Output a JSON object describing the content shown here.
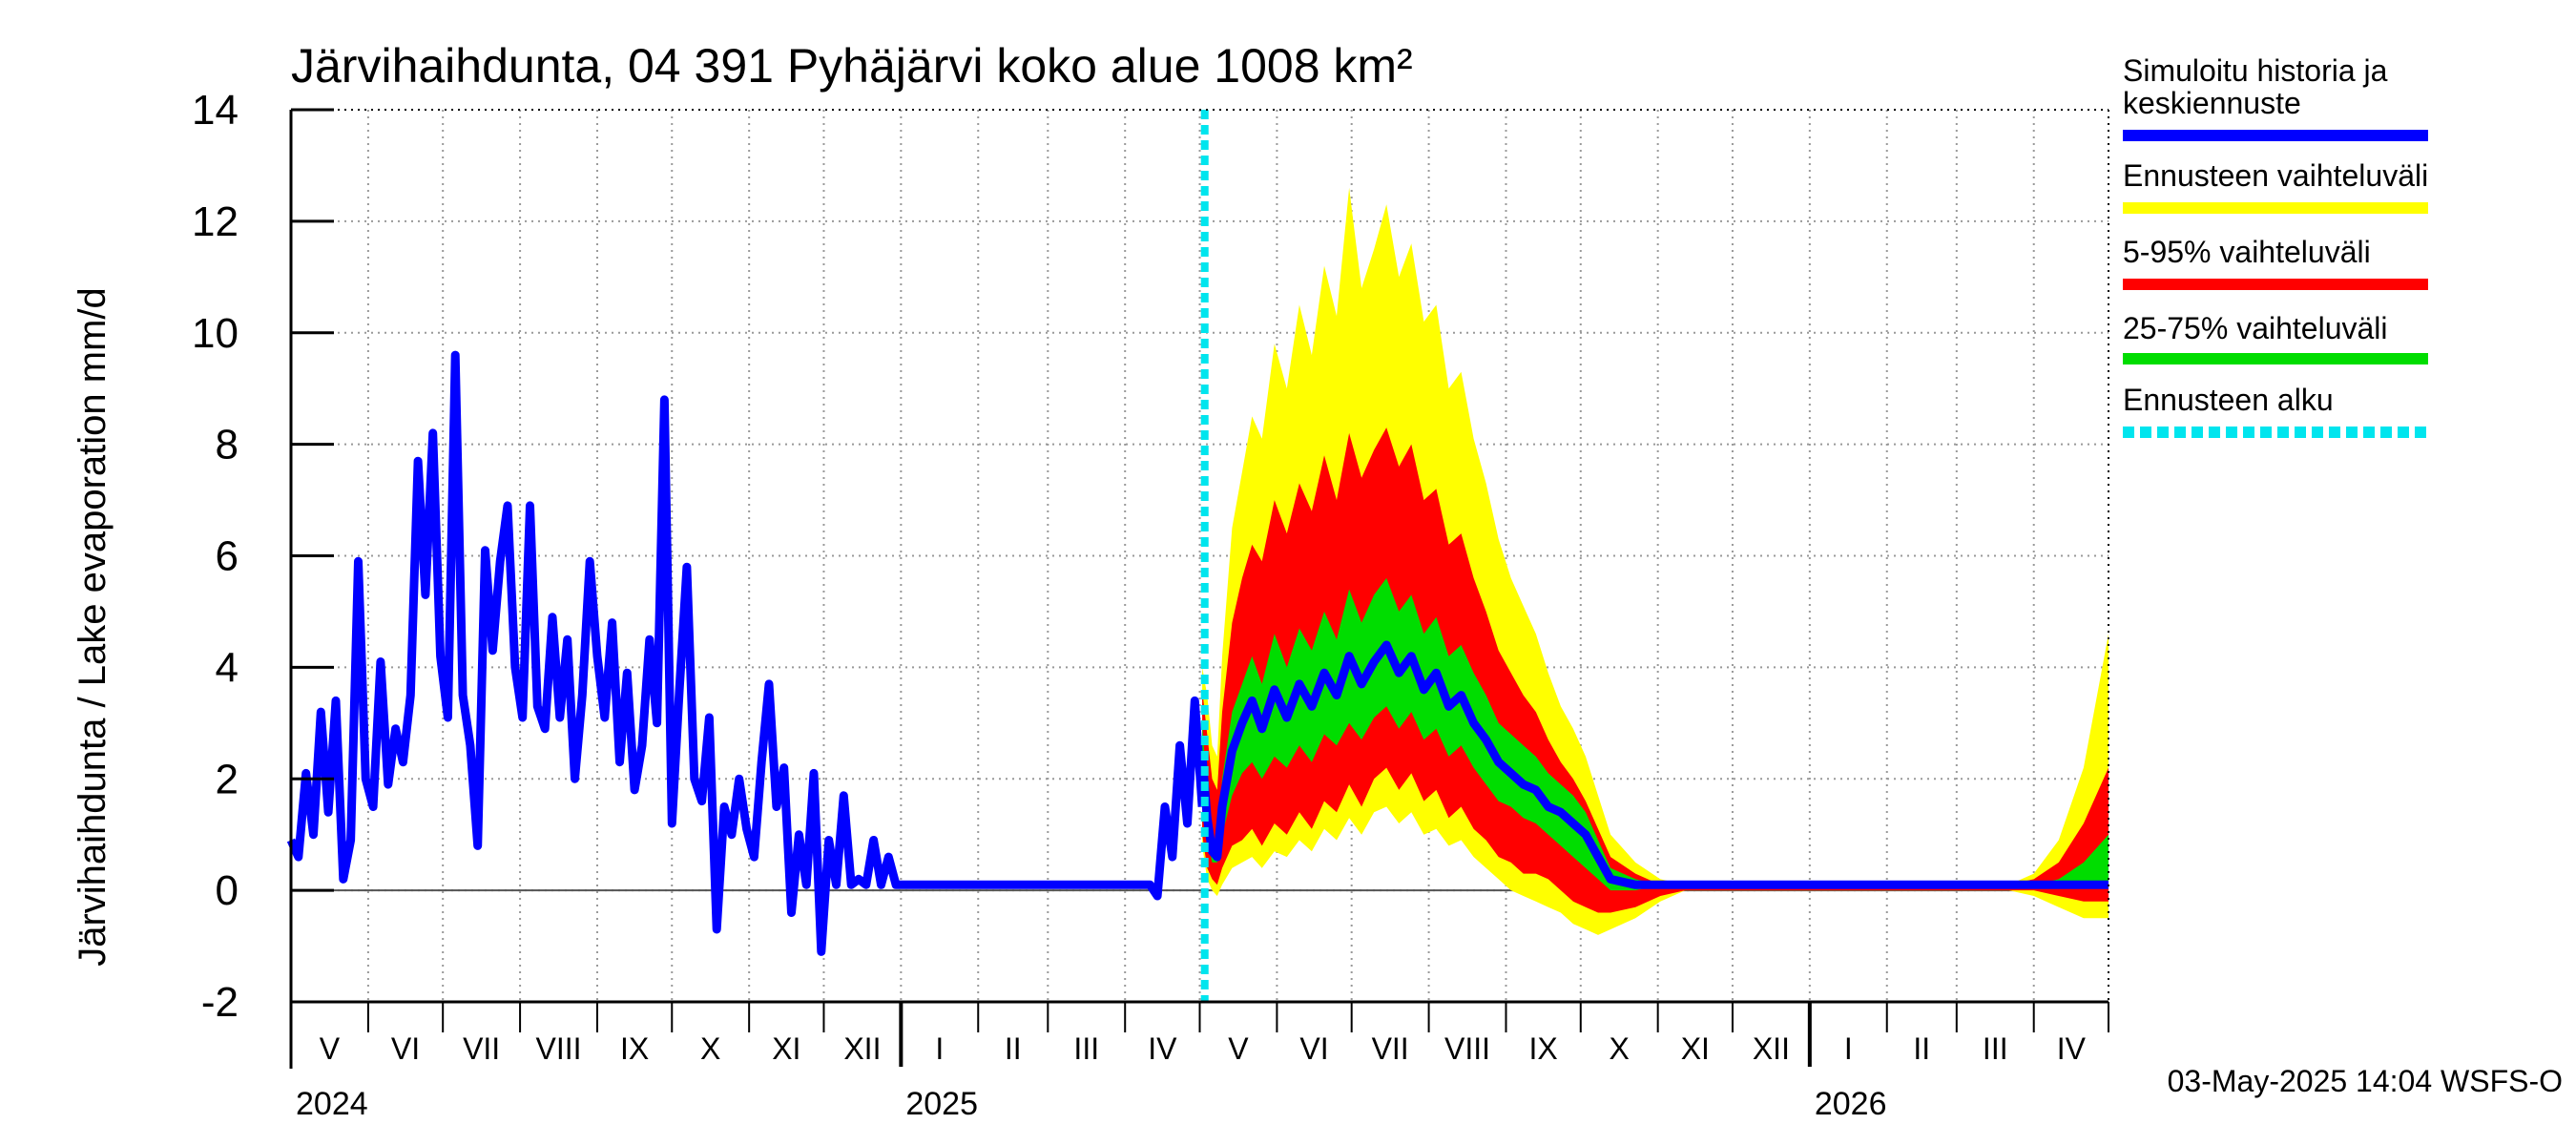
{
  "chart_data": {
    "type": "area",
    "title": "Järvihaihdunta, 04 391 Pyhäjärvi koko alue 1008 km²",
    "ylabel": "Järvihaihdunta / Lake evaporation   mm/d",
    "ylim": [
      -2,
      14
    ],
    "yticks": [
      "-2",
      "0",
      "2",
      "4",
      "6",
      "8",
      "10",
      "12",
      "14"
    ],
    "months": [
      "V",
      "VI",
      "VII",
      "VIII",
      "IX",
      "X",
      "XI",
      "XII",
      "I",
      "II",
      "III",
      "IV",
      "V",
      "VI",
      "VII",
      "VIII",
      "IX",
      "X",
      "XI",
      "XII",
      "I",
      "II",
      "III",
      "IV"
    ],
    "years": [
      "2024",
      "2025",
      "2026"
    ],
    "forecast_start": "2025-05-03",
    "x_start": "2024-05-01",
    "x_end": "2026-05-01",
    "history": {
      "name": "Simuloitu historia ja keskiennuste",
      "color": "#0000ff",
      "days": [
        0,
        3,
        6,
        9,
        12,
        15,
        18,
        21,
        24,
        27,
        30,
        33,
        36,
        39,
        42,
        45,
        48,
        51,
        54,
        57,
        60,
        63,
        66,
        69,
        72,
        75,
        78,
        81,
        84,
        87,
        90,
        93,
        96,
        99,
        102,
        105,
        108,
        111,
        114,
        117,
        120,
        123,
        126,
        129,
        132,
        135,
        138,
        141,
        144,
        147,
        150,
        153,
        156,
        159,
        162,
        165,
        168,
        171,
        174,
        177,
        180,
        183,
        186,
        189,
        192,
        195,
        198,
        201,
        204,
        207,
        210,
        213,
        216,
        219,
        222,
        225,
        228,
        231,
        234,
        237,
        240,
        243,
        246,
        250,
        280,
        310,
        340,
        345,
        348,
        351,
        354,
        357,
        360,
        363,
        366
      ],
      "values": [
        0.9,
        0.6,
        2.1,
        1.0,
        3.2,
        1.4,
        3.4,
        0.2,
        0.9,
        5.9,
        2.0,
        1.5,
        4.1,
        1.9,
        2.9,
        2.3,
        3.5,
        7.7,
        5.3,
        8.2,
        4.2,
        3.1,
        9.6,
        3.5,
        2.6,
        0.8,
        6.1,
        4.3,
        5.9,
        6.9,
        4.0,
        3.1,
        6.9,
        3.3,
        2.9,
        4.9,
        3.1,
        4.5,
        2.0,
        3.5,
        5.9,
        4.2,
        3.1,
        4.8,
        2.3,
        3.9,
        1.8,
        2.6,
        4.5,
        3.0,
        8.8,
        1.2,
        3.6,
        5.8,
        2.0,
        1.6,
        3.1,
        -0.7,
        1.5,
        1.0,
        2.0,
        1.1,
        0.6,
        2.3,
        3.7,
        1.5,
        2.2,
        -0.4,
        1.0,
        0.1,
        2.1,
        -1.1,
        0.9,
        0.1,
        1.7,
        0.1,
        0.2,
        0.1,
        0.9,
        0.1,
        0.6,
        0.1,
        0.1,
        0.1,
        0.1,
        0.1,
        0.1,
        0.1,
        -0.1,
        1.5,
        0.6,
        2.6,
        1.2,
        3.4,
        1.5
      ]
    },
    "forecast": {
      "days": [
        366,
        368,
        370,
        372,
        374,
        378,
        382,
        386,
        390,
        395,
        400,
        405,
        410,
        415,
        420,
        425,
        430,
        435,
        440,
        445,
        450,
        455,
        460,
        465,
        470,
        475,
        480,
        485,
        490,
        495,
        500,
        505,
        510,
        515,
        520,
        525,
        530,
        540,
        550,
        560,
        570,
        580,
        590,
        600,
        610,
        620,
        630,
        640,
        650,
        660,
        670,
        680,
        690,
        700,
        710,
        720,
        730
      ],
      "median": [
        2.4,
        1.3,
        0.7,
        0.6,
        1.5,
        2.5,
        3.0,
        3.4,
        2.9,
        3.6,
        3.1,
        3.7,
        3.3,
        3.9,
        3.5,
        4.2,
        3.7,
        4.1,
        4.4,
        3.9,
        4.2,
        3.6,
        3.9,
        3.3,
        3.5,
        3.0,
        2.7,
        2.3,
        2.1,
        1.9,
        1.8,
        1.5,
        1.4,
        1.2,
        1.0,
        0.6,
        0.2,
        0.1,
        0.1,
        0.1,
        0.1,
        0.1,
        0.1,
        0.1,
        0.1,
        0.1,
        0.1,
        0.1,
        0.1,
        0.1,
        0.1,
        0.1,
        0.1,
        0.1,
        0.1,
        0.1,
        0.1
      ],
      "p25": [
        1.8,
        0.9,
        0.5,
        0.5,
        1.0,
        1.7,
        2.1,
        2.3,
        2.0,
        2.4,
        2.2,
        2.6,
        2.3,
        2.8,
        2.6,
        3.0,
        2.7,
        3.1,
        3.3,
        2.9,
        3.2,
        2.7,
        2.9,
        2.4,
        2.6,
        2.2,
        1.9,
        1.6,
        1.5,
        1.3,
        1.2,
        1.0,
        0.8,
        0.6,
        0.4,
        0.2,
        0.0,
        0.0,
        0.1,
        0.1,
        0.1,
        0.1,
        0.1,
        0.1,
        0.1,
        0.1,
        0.1,
        0.1,
        0.1,
        0.1,
        0.1,
        0.1,
        0.1,
        0.1,
        0.1,
        0.1,
        0.1
      ],
      "p75": [
        3.0,
        1.7,
        1.0,
        0.8,
        2.0,
        3.2,
        3.7,
        4.2,
        3.7,
        4.6,
        4.0,
        4.7,
        4.3,
        5.0,
        4.5,
        5.4,
        4.8,
        5.3,
        5.6,
        5.0,
        5.3,
        4.6,
        4.9,
        4.2,
        4.4,
        3.9,
        3.5,
        3.0,
        2.8,
        2.6,
        2.4,
        2.1,
        1.9,
        1.7,
        1.4,
        0.9,
        0.4,
        0.2,
        0.1,
        0.1,
        0.1,
        0.1,
        0.1,
        0.1,
        0.1,
        0.1,
        0.1,
        0.1,
        0.1,
        0.1,
        0.1,
        0.1,
        0.1,
        0.1,
        0.2,
        0.5,
        1.0
      ],
      "p5": [
        1.0,
        0.4,
        0.2,
        0.1,
        0.4,
        0.8,
        0.9,
        1.1,
        0.8,
        1.2,
        1.0,
        1.4,
        1.1,
        1.6,
        1.4,
        1.9,
        1.5,
        2.0,
        2.2,
        1.8,
        2.1,
        1.6,
        1.8,
        1.3,
        1.5,
        1.1,
        0.9,
        0.6,
        0.5,
        0.3,
        0.3,
        0.2,
        0.0,
        -0.2,
        -0.3,
        -0.4,
        -0.4,
        -0.3,
        -0.1,
        0.0,
        0.0,
        0.0,
        0.0,
        0.0,
        0.0,
        0.0,
        0.0,
        0.0,
        0.0,
        0.0,
        0.0,
        0.0,
        0.0,
        0.0,
        -0.1,
        -0.2,
        -0.2
      ],
      "p95": [
        3.6,
        2.8,
        2.0,
        1.8,
        3.2,
        4.8,
        5.6,
        6.2,
        5.9,
        7.0,
        6.4,
        7.3,
        6.8,
        7.8,
        7.0,
        8.2,
        7.4,
        7.9,
        8.3,
        7.6,
        8.0,
        7.0,
        7.2,
        6.2,
        6.4,
        5.6,
        5.0,
        4.3,
        3.9,
        3.5,
        3.2,
        2.7,
        2.3,
        2.0,
        1.6,
        1.1,
        0.6,
        0.3,
        0.1,
        0.1,
        0.1,
        0.1,
        0.1,
        0.1,
        0.1,
        0.1,
        0.1,
        0.1,
        0.1,
        0.1,
        0.1,
        0.1,
        0.1,
        0.2,
        0.5,
        1.2,
        2.2
      ],
      "min": [
        0.8,
        0.2,
        0.0,
        -0.1,
        0.1,
        0.4,
        0.5,
        0.6,
        0.4,
        0.7,
        0.6,
        0.9,
        0.7,
        1.1,
        0.9,
        1.3,
        1.0,
        1.4,
        1.5,
        1.2,
        1.4,
        1.0,
        1.1,
        0.8,
        0.9,
        0.6,
        0.4,
        0.2,
        0.0,
        -0.1,
        -0.2,
        -0.3,
        -0.4,
        -0.6,
        -0.7,
        -0.8,
        -0.7,
        -0.5,
        -0.2,
        0.0,
        0.0,
        0.0,
        0.0,
        0.0,
        0.0,
        0.0,
        0.0,
        0.0,
        0.0,
        0.0,
        0.0,
        0.0,
        0.0,
        -0.1,
        -0.3,
        -0.5,
        -0.5
      ],
      "max": [
        4.0,
        3.5,
        2.6,
        2.4,
        4.2,
        6.5,
        7.5,
        8.5,
        8.1,
        9.8,
        9.0,
        10.5,
        9.6,
        11.2,
        10.3,
        12.6,
        10.8,
        11.5,
        12.3,
        11.0,
        11.6,
        10.2,
        10.5,
        9.0,
        9.3,
        8.1,
        7.3,
        6.3,
        5.6,
        5.1,
        4.6,
        3.9,
        3.3,
        2.9,
        2.4,
        1.7,
        1.0,
        0.5,
        0.2,
        0.1,
        0.1,
        0.1,
        0.1,
        0.1,
        0.1,
        0.1,
        0.1,
        0.1,
        0.1,
        0.1,
        0.1,
        0.1,
        0.1,
        0.3,
        0.9,
        2.2,
        4.6
      ]
    },
    "legend": [
      {
        "label": "Simuloitu historia ja",
        "label2": "keskiennuste",
        "color": "#0000ff",
        "style": "solid"
      },
      {
        "label": "Ennusteen vaihteluväli",
        "color": "#ffff00",
        "style": "solid"
      },
      {
        "label": "5-95% vaihteluväli",
        "color": "#ff0000",
        "style": "solid"
      },
      {
        "label": "25-75% vaihteluväli",
        "color": "#00dd00",
        "style": "solid"
      },
      {
        "label": "Ennusteen alku",
        "color": "#00e5ee",
        "style": "dashed"
      }
    ],
    "footer": "03-May-2025 14:04 WSFS-O"
  }
}
